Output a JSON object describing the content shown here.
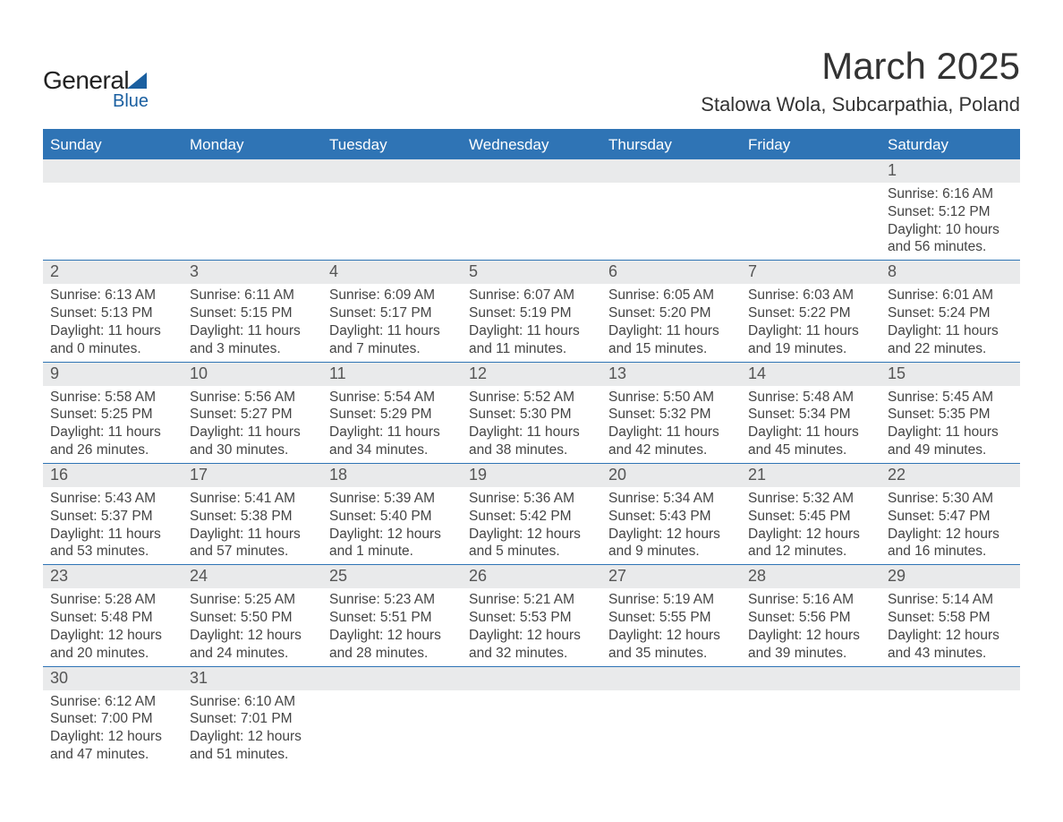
{
  "logo": {
    "text1": "General",
    "text2": "Blue"
  },
  "title": "March 2025",
  "location": "Stalowa Wola, Subcarpathia, Poland",
  "colors": {
    "header_bg": "#2f74b5",
    "header_text": "#ffffff",
    "daynum_bg": "#e9eaeb",
    "text": "#444444",
    "week_border": "#2f74b5"
  },
  "fonts": {
    "title_size_pt": 32,
    "location_size_pt": 17,
    "weekday_size_pt": 13,
    "daynum_size_pt": 14,
    "body_size_pt": 12
  },
  "weekdays": [
    "Sunday",
    "Monday",
    "Tuesday",
    "Wednesday",
    "Thursday",
    "Friday",
    "Saturday"
  ],
  "weeks": [
    [
      null,
      null,
      null,
      null,
      null,
      null,
      {
        "n": "1",
        "sr": "Sunrise: 6:16 AM",
        "ss": "Sunset: 5:12 PM",
        "d1": "Daylight: 10 hours",
        "d2": "and 56 minutes."
      }
    ],
    [
      {
        "n": "2",
        "sr": "Sunrise: 6:13 AM",
        "ss": "Sunset: 5:13 PM",
        "d1": "Daylight: 11 hours",
        "d2": "and 0 minutes."
      },
      {
        "n": "3",
        "sr": "Sunrise: 6:11 AM",
        "ss": "Sunset: 5:15 PM",
        "d1": "Daylight: 11 hours",
        "d2": "and 3 minutes."
      },
      {
        "n": "4",
        "sr": "Sunrise: 6:09 AM",
        "ss": "Sunset: 5:17 PM",
        "d1": "Daylight: 11 hours",
        "d2": "and 7 minutes."
      },
      {
        "n": "5",
        "sr": "Sunrise: 6:07 AM",
        "ss": "Sunset: 5:19 PM",
        "d1": "Daylight: 11 hours",
        "d2": "and 11 minutes."
      },
      {
        "n": "6",
        "sr": "Sunrise: 6:05 AM",
        "ss": "Sunset: 5:20 PM",
        "d1": "Daylight: 11 hours",
        "d2": "and 15 minutes."
      },
      {
        "n": "7",
        "sr": "Sunrise: 6:03 AM",
        "ss": "Sunset: 5:22 PM",
        "d1": "Daylight: 11 hours",
        "d2": "and 19 minutes."
      },
      {
        "n": "8",
        "sr": "Sunrise: 6:01 AM",
        "ss": "Sunset: 5:24 PM",
        "d1": "Daylight: 11 hours",
        "d2": "and 22 minutes."
      }
    ],
    [
      {
        "n": "9",
        "sr": "Sunrise: 5:58 AM",
        "ss": "Sunset: 5:25 PM",
        "d1": "Daylight: 11 hours",
        "d2": "and 26 minutes."
      },
      {
        "n": "10",
        "sr": "Sunrise: 5:56 AM",
        "ss": "Sunset: 5:27 PM",
        "d1": "Daylight: 11 hours",
        "d2": "and 30 minutes."
      },
      {
        "n": "11",
        "sr": "Sunrise: 5:54 AM",
        "ss": "Sunset: 5:29 PM",
        "d1": "Daylight: 11 hours",
        "d2": "and 34 minutes."
      },
      {
        "n": "12",
        "sr": "Sunrise: 5:52 AM",
        "ss": "Sunset: 5:30 PM",
        "d1": "Daylight: 11 hours",
        "d2": "and 38 minutes."
      },
      {
        "n": "13",
        "sr": "Sunrise: 5:50 AM",
        "ss": "Sunset: 5:32 PM",
        "d1": "Daylight: 11 hours",
        "d2": "and 42 minutes."
      },
      {
        "n": "14",
        "sr": "Sunrise: 5:48 AM",
        "ss": "Sunset: 5:34 PM",
        "d1": "Daylight: 11 hours",
        "d2": "and 45 minutes."
      },
      {
        "n": "15",
        "sr": "Sunrise: 5:45 AM",
        "ss": "Sunset: 5:35 PM",
        "d1": "Daylight: 11 hours",
        "d2": "and 49 minutes."
      }
    ],
    [
      {
        "n": "16",
        "sr": "Sunrise: 5:43 AM",
        "ss": "Sunset: 5:37 PM",
        "d1": "Daylight: 11 hours",
        "d2": "and 53 minutes."
      },
      {
        "n": "17",
        "sr": "Sunrise: 5:41 AM",
        "ss": "Sunset: 5:38 PM",
        "d1": "Daylight: 11 hours",
        "d2": "and 57 minutes."
      },
      {
        "n": "18",
        "sr": "Sunrise: 5:39 AM",
        "ss": "Sunset: 5:40 PM",
        "d1": "Daylight: 12 hours",
        "d2": "and 1 minute."
      },
      {
        "n": "19",
        "sr": "Sunrise: 5:36 AM",
        "ss": "Sunset: 5:42 PM",
        "d1": "Daylight: 12 hours",
        "d2": "and 5 minutes."
      },
      {
        "n": "20",
        "sr": "Sunrise: 5:34 AM",
        "ss": "Sunset: 5:43 PM",
        "d1": "Daylight: 12 hours",
        "d2": "and 9 minutes."
      },
      {
        "n": "21",
        "sr": "Sunrise: 5:32 AM",
        "ss": "Sunset: 5:45 PM",
        "d1": "Daylight: 12 hours",
        "d2": "and 12 minutes."
      },
      {
        "n": "22",
        "sr": "Sunrise: 5:30 AM",
        "ss": "Sunset: 5:47 PM",
        "d1": "Daylight: 12 hours",
        "d2": "and 16 minutes."
      }
    ],
    [
      {
        "n": "23",
        "sr": "Sunrise: 5:28 AM",
        "ss": "Sunset: 5:48 PM",
        "d1": "Daylight: 12 hours",
        "d2": "and 20 minutes."
      },
      {
        "n": "24",
        "sr": "Sunrise: 5:25 AM",
        "ss": "Sunset: 5:50 PM",
        "d1": "Daylight: 12 hours",
        "d2": "and 24 minutes."
      },
      {
        "n": "25",
        "sr": "Sunrise: 5:23 AM",
        "ss": "Sunset: 5:51 PM",
        "d1": "Daylight: 12 hours",
        "d2": "and 28 minutes."
      },
      {
        "n": "26",
        "sr": "Sunrise: 5:21 AM",
        "ss": "Sunset: 5:53 PM",
        "d1": "Daylight: 12 hours",
        "d2": "and 32 minutes."
      },
      {
        "n": "27",
        "sr": "Sunrise: 5:19 AM",
        "ss": "Sunset: 5:55 PM",
        "d1": "Daylight: 12 hours",
        "d2": "and 35 minutes."
      },
      {
        "n": "28",
        "sr": "Sunrise: 5:16 AM",
        "ss": "Sunset: 5:56 PM",
        "d1": "Daylight: 12 hours",
        "d2": "and 39 minutes."
      },
      {
        "n": "29",
        "sr": "Sunrise: 5:14 AM",
        "ss": "Sunset: 5:58 PM",
        "d1": "Daylight: 12 hours",
        "d2": "and 43 minutes."
      }
    ],
    [
      {
        "n": "30",
        "sr": "Sunrise: 6:12 AM",
        "ss": "Sunset: 7:00 PM",
        "d1": "Daylight: 12 hours",
        "d2": "and 47 minutes."
      },
      {
        "n": "31",
        "sr": "Sunrise: 6:10 AM",
        "ss": "Sunset: 7:01 PM",
        "d1": "Daylight: 12 hours",
        "d2": "and 51 minutes."
      },
      null,
      null,
      null,
      null,
      null
    ]
  ]
}
